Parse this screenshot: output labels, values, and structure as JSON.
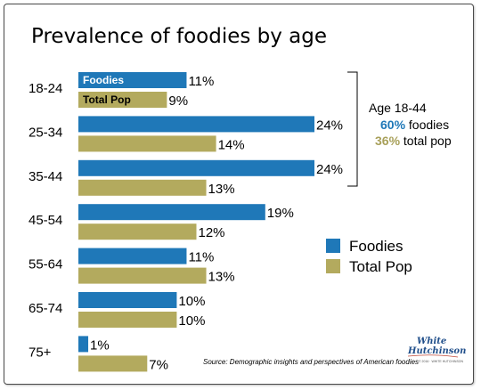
{
  "chart_data": {
    "type": "bar",
    "orientation": "horizontal",
    "title": "Prevalence of foodies by age",
    "categories": [
      "18-24",
      "25-34",
      "35-44",
      "45-54",
      "55-64",
      "65-74",
      "75+"
    ],
    "series": [
      {
        "name": "Foodies",
        "values": [
          11,
          24,
          24,
          19,
          11,
          10,
          1
        ],
        "value_labels": [
          "11%",
          "24%",
          "24%",
          "19%",
          "11%",
          "10%",
          "1%"
        ]
      },
      {
        "name": "Total Pop",
        "values": [
          9,
          14,
          13,
          12,
          13,
          10,
          7
        ],
        "value_labels": [
          "9%",
          "14%",
          "13%",
          "12%",
          "13%",
          "10%",
          "7%"
        ]
      }
    ],
    "xlim": [
      0,
      24
    ],
    "grid": false,
    "legend_position": "right",
    "inline_labels": [
      "Foodies",
      "Total Pop"
    ],
    "annotation": {
      "heading": "Age 18-44",
      "line1_value": "60%",
      "line1_text": " foodies",
      "line2_value": "36%",
      "line2_text": " total pop"
    },
    "source": "Source: Demographic insights and perspectives of American foodies"
  },
  "logo": {
    "line1": "White",
    "line2": "Hutchinson",
    "tagline": "© 2016 · WHITE HUTCHINSON"
  },
  "colors": {
    "foodies": "#1f78b8",
    "total_pop": "#b3aa5e",
    "annotation_foodies": "#1f78b8",
    "annotation_total": "#a8a05a"
  }
}
